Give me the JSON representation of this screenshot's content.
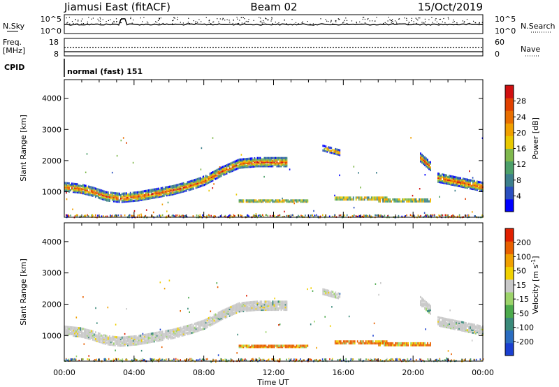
{
  "header": {
    "title": "Jiamusi East (fitACF)",
    "beam": "Beam 02",
    "date": "15/Oct/2019"
  },
  "aux": {
    "nsky_label": "N.Sky",
    "nsearch_label": "N.Search",
    "noise_ticks_left": [
      "10^5",
      "10^0"
    ],
    "noise_ticks_right": [
      "10^5",
      "10^0"
    ],
    "freq_label": "Freq.",
    "freq_unit": "[MHz]",
    "freq_ticks": [
      "18",
      "8"
    ],
    "nave_label": "Nave",
    "nave_ticks": [
      "60",
      "0"
    ],
    "cpid_label": "CPID",
    "cpid_value": "normal (fast) 151"
  },
  "chart_data": [
    {
      "type": "heatmap",
      "name": "power",
      "ylabel": "Slant Range [km]",
      "xlabel": "",
      "ylim": [
        180,
        4600
      ],
      "yticks": [
        "1000",
        "2000",
        "3000",
        "4000"
      ],
      "xlim": [
        0,
        24
      ],
      "xticks": [
        "00:00",
        "04:00",
        "08:00",
        "12:00",
        "16:00",
        "20:00",
        "00:00"
      ],
      "colorbar": {
        "label": "Power [dB]",
        "ticks": [
          "4",
          "8",
          "12",
          "16",
          "20",
          "24",
          "28"
        ],
        "colors": [
          "#0000ff",
          "#2a4fbf",
          "#3c7f8c",
          "#4da06a",
          "#7fb84d",
          "#e8c800",
          "#f0a000",
          "#e86e00",
          "#e04000",
          "#d01010"
        ]
      },
      "bands": [
        {
          "x": [
            0.0,
            0.9,
            1.6,
            2.4,
            3.2,
            4.2,
            5.2,
            6.2,
            7.2,
            8.0,
            9.0,
            10.0,
            11.0,
            12.0,
            12.8
          ],
          "y": [
            1150,
            1100,
            1000,
            850,
            800,
            850,
            950,
            1050,
            1200,
            1350,
            1650,
            1900,
            1950,
            1950,
            1950
          ],
          "thickness_km": 260
        },
        {
          "x": [
            14.8,
            15.8
          ],
          "y": [
            2400,
            2250
          ],
          "thickness_km": 150
        },
        {
          "x": [
            20.4,
            21.0
          ],
          "y": [
            2100,
            1800
          ],
          "thickness_km": 250
        },
        {
          "x": [
            21.4,
            24.0
          ],
          "y": [
            1450,
            1150
          ],
          "thickness_km": 260
        },
        {
          "x": [
            15.5,
            18.5
          ],
          "y": [
            780,
            780
          ],
          "thickness_km": 60
        },
        {
          "x": [
            18.0,
            21.0
          ],
          "y": [
            720,
            720
          ],
          "thickness_km": 60
        },
        {
          "x": [
            10.0,
            14.0
          ],
          "y": [
            700,
            700
          ],
          "thickness_km": 40
        }
      ]
    },
    {
      "type": "heatmap",
      "name": "velocity",
      "ylabel": "Slant Range [km]",
      "xlabel": "Time UT",
      "ylim": [
        180,
        4600
      ],
      "yticks": [
        "1000",
        "2000",
        "3000",
        "4000"
      ],
      "xlim": [
        0,
        24
      ],
      "xticks": [
        "00:00",
        "04:00",
        "08:00",
        "12:00",
        "16:00",
        "20:00",
        "00:00"
      ],
      "colorbar": {
        "label": "Velocity [m s",
        "label_sup": "-1",
        "label_end": "]",
        "ticks": [
          "200",
          "100",
          "50",
          "15",
          "-15",
          "-50",
          "-100",
          "-200"
        ],
        "colors": [
          "#1a3fd0",
          "#2a6cc0",
          "#3a8a7a",
          "#4caa4c",
          "#9cd36a",
          "#c8c8c8",
          "#f0d000",
          "#f0a000",
          "#e86000",
          "#e02000"
        ]
      },
      "bands": [
        {
          "x": [
            0.0,
            0.9,
            1.6,
            2.4,
            3.2,
            4.2,
            5.2,
            6.2,
            7.2,
            8.0,
            9.0,
            10.0,
            11.0,
            12.0,
            12.8
          ],
          "y": [
            1150,
            1100,
            1000,
            850,
            800,
            850,
            950,
            1050,
            1200,
            1350,
            1650,
            1900,
            1950,
            1950,
            1950
          ],
          "thickness_km": 260
        },
        {
          "x": [
            14.8,
            15.8
          ],
          "y": [
            2400,
            2250
          ],
          "thickness_km": 150
        },
        {
          "x": [
            20.4,
            21.0
          ],
          "y": [
            2100,
            1800
          ],
          "thickness_km": 250
        },
        {
          "x": [
            21.4,
            24.0
          ],
          "y": [
            1450,
            1150
          ],
          "thickness_km": 260
        },
        {
          "x": [
            15.5,
            18.5
          ],
          "y": [
            780,
            780
          ],
          "thickness_km": 60
        },
        {
          "x": [
            18.0,
            21.0
          ],
          "y": [
            720,
            720
          ],
          "thickness_km": 60
        },
        {
          "x": [
            10.0,
            14.0
          ],
          "y": [
            650,
            650
          ],
          "thickness_km": 40
        }
      ]
    }
  ]
}
